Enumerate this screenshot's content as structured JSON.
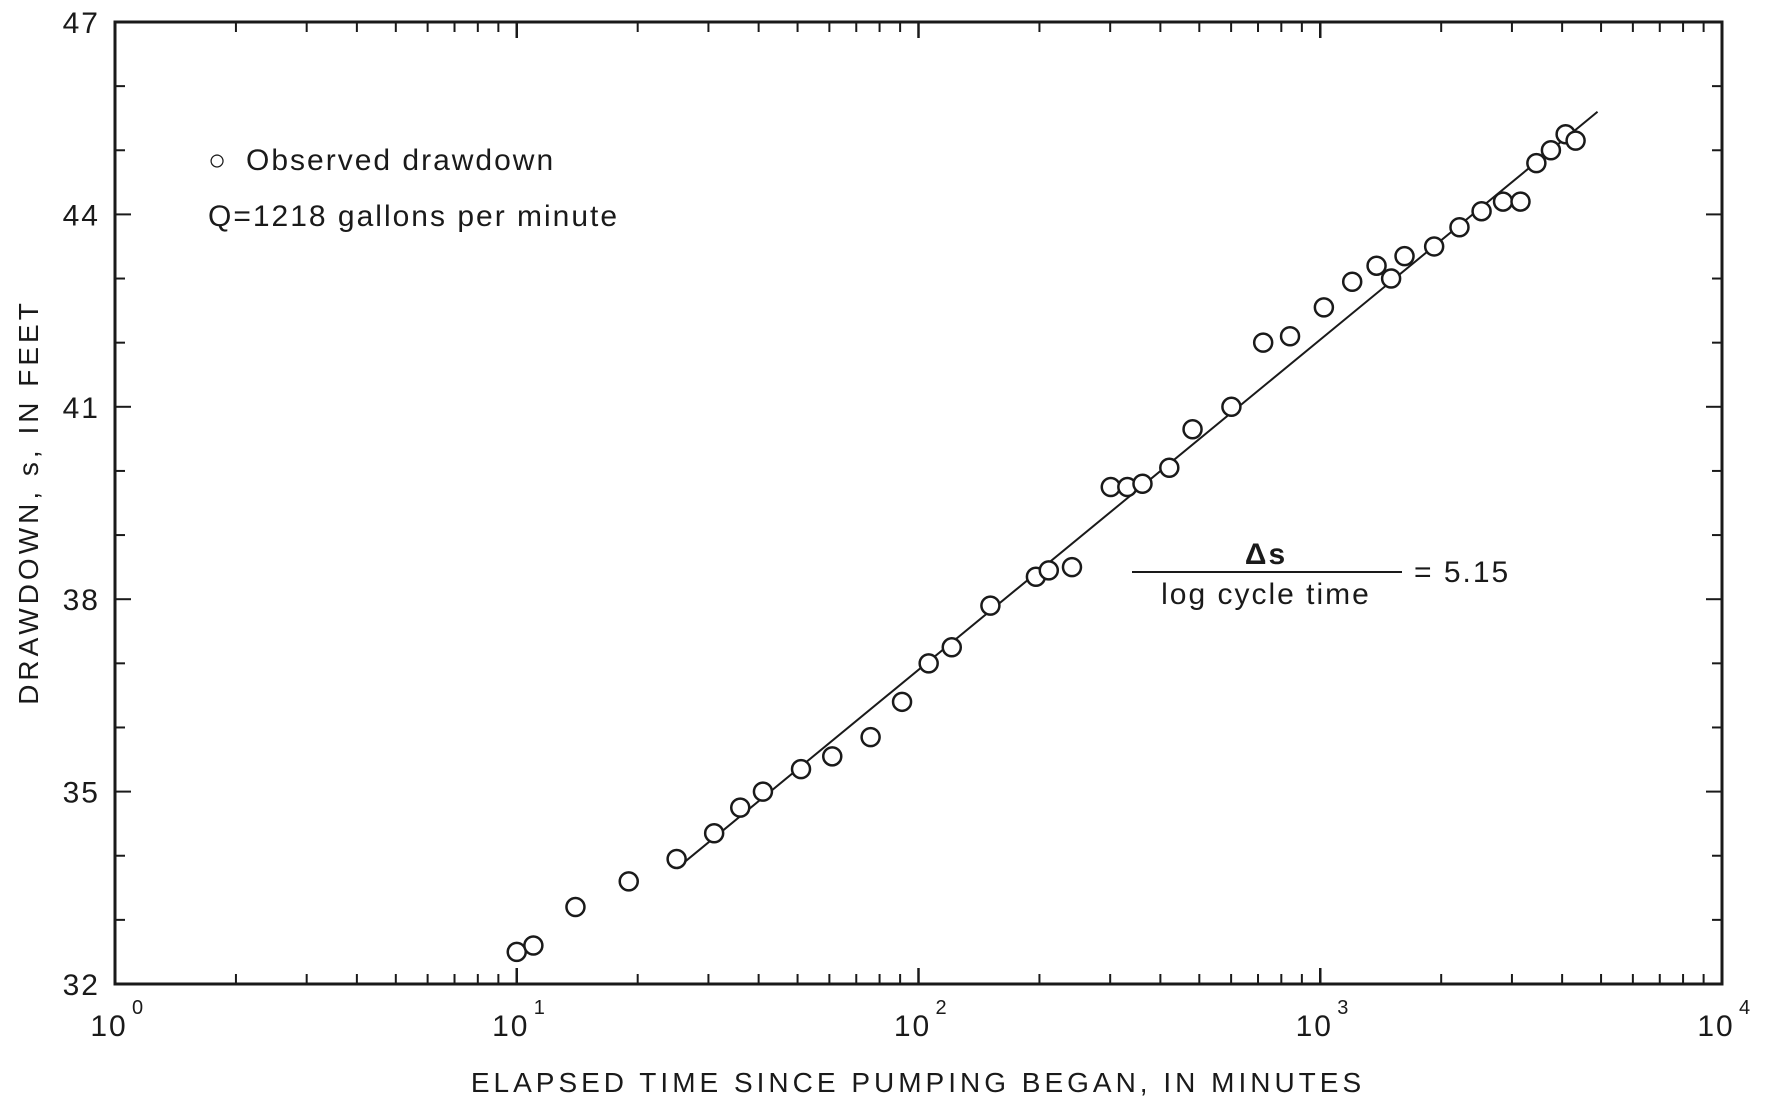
{
  "chart_data": {
    "type": "scatter",
    "xscale": "log",
    "xlabel": "ELAPSED TIME SINCE PUMPING BEGAN, IN MINUTES",
    "ylabel": "DRAWDOWN, s, IN FEET",
    "xlim": [
      1,
      10000
    ],
    "ylim": [
      32,
      47
    ],
    "xticks": [
      {
        "value": 1,
        "base": "10",
        "exp": "0"
      },
      {
        "value": 10,
        "base": "10",
        "exp": "1"
      },
      {
        "value": 100,
        "base": "10",
        "exp": "2"
      },
      {
        "value": 1000,
        "base": "10",
        "exp": "3"
      },
      {
        "value": 10000,
        "base": "10",
        "exp": "4"
      }
    ],
    "yticks": [
      {
        "value": 32,
        "label": "32"
      },
      {
        "value": 35,
        "label": "35"
      },
      {
        "value": 38,
        "label": "38"
      },
      {
        "value": 41,
        "label": "41"
      },
      {
        "value": 44,
        "label": "44"
      },
      {
        "value": 47,
        "label": "47"
      }
    ],
    "series": [
      {
        "name": "Observed drawdown",
        "marker": "open-circle",
        "points": [
          [
            10,
            32.5
          ],
          [
            11,
            32.6
          ],
          [
            14,
            33.2
          ],
          [
            19,
            33.6
          ],
          [
            25,
            33.95
          ],
          [
            31,
            34.35
          ],
          [
            36,
            34.75
          ],
          [
            41,
            35.0
          ],
          [
            51,
            35.35
          ],
          [
            61,
            35.55
          ],
          [
            76,
            35.85
          ],
          [
            91,
            36.4
          ],
          [
            106,
            37.0
          ],
          [
            121,
            37.25
          ],
          [
            151,
            37.9
          ],
          [
            196,
            38.35
          ],
          [
            211,
            38.45
          ],
          [
            241,
            38.5
          ],
          [
            301,
            39.75
          ],
          [
            331,
            39.75
          ],
          [
            361,
            39.8
          ],
          [
            421,
            40.05
          ],
          [
            481,
            40.65
          ],
          [
            601,
            41.0
          ],
          [
            721,
            42.0
          ],
          [
            841,
            42.1
          ],
          [
            1021,
            42.55
          ],
          [
            1201,
            42.95
          ],
          [
            1381,
            43.2
          ],
          [
            1501,
            43.0
          ],
          [
            1621,
            43.35
          ],
          [
            1921,
            43.5
          ],
          [
            2221,
            43.8
          ],
          [
            2521,
            44.05
          ],
          [
            2851,
            44.2
          ],
          [
            3151,
            44.2
          ],
          [
            3451,
            44.8
          ],
          [
            3751,
            45.0
          ],
          [
            4081,
            45.25
          ],
          [
            4321,
            45.15
          ]
        ]
      }
    ],
    "fit_line": {
      "x": [
        25,
        4900
      ],
      "y": [
        33.8,
        45.6
      ]
    },
    "legend": {
      "symbol": "○",
      "label": "Observed drawdown",
      "note": "Q=1218 gallons per minute"
    },
    "annotation": {
      "numerator": "Δs",
      "denominator": "log cycle time",
      "equals": "= 5.15"
    },
    "colors": {
      "ink": "#1a1a1a",
      "background": "#ffffff"
    }
  }
}
